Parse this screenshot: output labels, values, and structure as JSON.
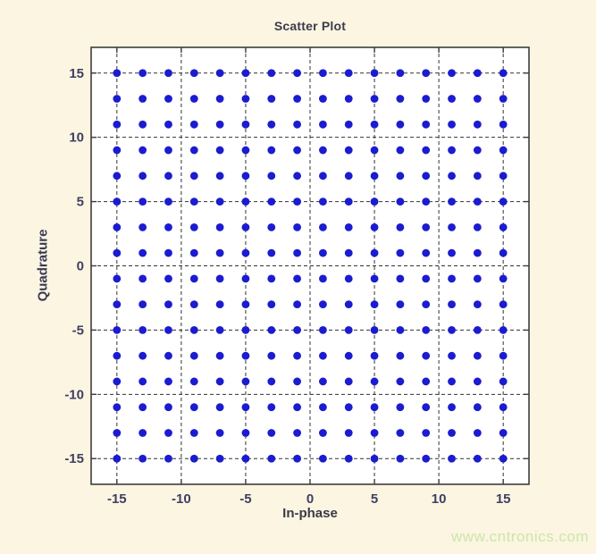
{
  "figure": {
    "title": "Scatter Plot",
    "xlabel": "In-phase",
    "ylabel": "Quadrature",
    "watermark": "www.cntronics.com"
  },
  "chart_data": {
    "type": "scatter",
    "title": "Scatter Plot",
    "xlabel": "In-phase",
    "ylabel": "Quadrature",
    "xlim": [
      -17,
      17
    ],
    "ylim": [
      -17,
      17
    ],
    "xticks": [
      -15,
      -10,
      -5,
      0,
      5,
      10,
      15
    ],
    "yticks": [
      -15,
      -10,
      -5,
      0,
      5,
      10,
      15
    ],
    "grid": true,
    "grid_style": "dashed",
    "description": "256-QAM constellation: points at every odd integer pair",
    "x_levels": [
      -15,
      -13,
      -11,
      -9,
      -7,
      -5,
      -3,
      -1,
      1,
      3,
      5,
      7,
      9,
      11,
      13,
      15
    ],
    "y_levels": [
      -15,
      -13,
      -11,
      -9,
      -7,
      -5,
      -3,
      -1,
      1,
      3,
      5,
      7,
      9,
      11,
      13,
      15
    ],
    "points_rule": "cartesian_product_of_x_levels_and_y_levels",
    "point_count": 256,
    "marker": {
      "shape": "dot",
      "radius_px": 4.4,
      "color": "#1b1bd0"
    }
  },
  "colors": {
    "page_background": "#fbf5e1",
    "plot_background": "#ffffff",
    "axis_box": "#3d3d3d",
    "grid_line": "#333333",
    "marker_blue": "#1b1bd0",
    "tick_text": "#3f3f63",
    "label_text": "#3a3a48",
    "watermark_green": "#cde7a8"
  }
}
